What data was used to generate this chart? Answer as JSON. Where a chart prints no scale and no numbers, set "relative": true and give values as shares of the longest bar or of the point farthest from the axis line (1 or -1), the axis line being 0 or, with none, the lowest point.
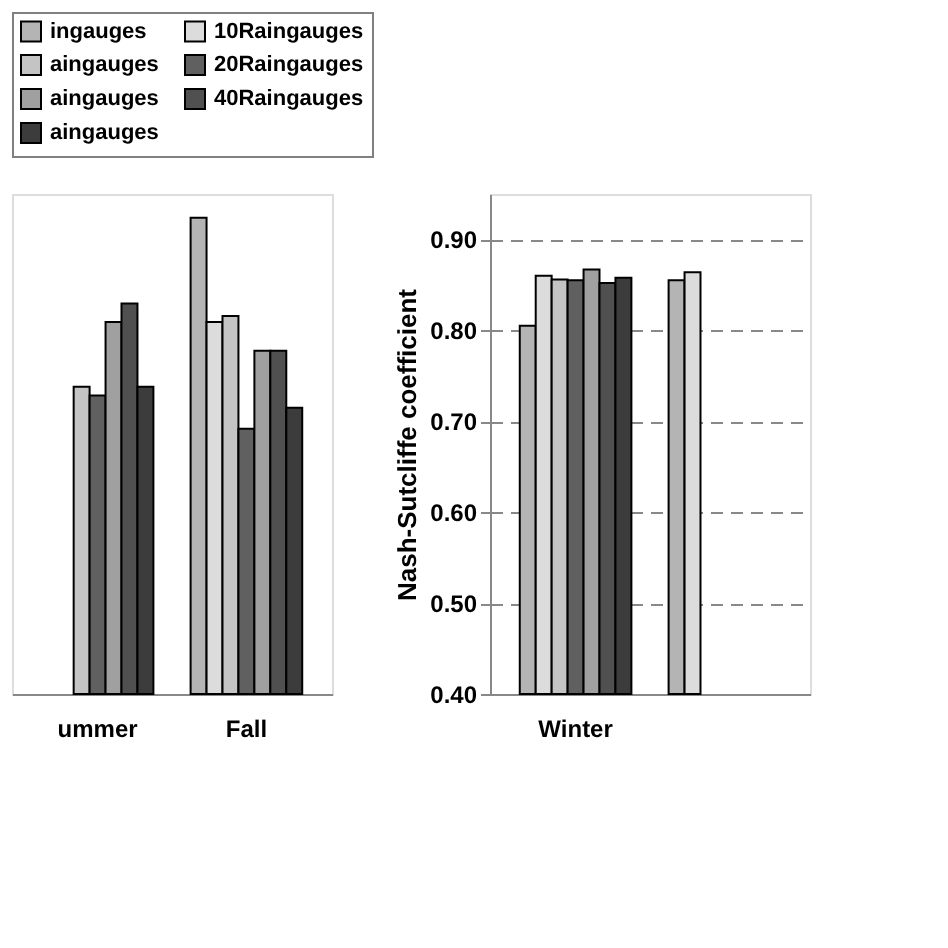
{
  "chart_data": [
    {
      "type": "bar",
      "relative": true,
      "categories": [
        "ummer",
        "Fall"
      ],
      "legend": "top",
      "series": [
        {
          "name": "ingauges",
          "color": "#b4b4b4",
          "values": [
            null,
            1
          ]
        },
        {
          "name": "10Raingauges",
          "color": "#dcdcdc",
          "values": [
            null,
            0.781
          ]
        },
        {
          "name": "aingauges",
          "color": "#c4c4c4",
          "values": [
            0.645,
            0.794
          ]
        },
        {
          "name": "20Raingauges",
          "color": "#606060",
          "values": [
            0.627,
            0.557
          ]
        },
        {
          "name": "aingauges",
          "color": "#a0a0a0",
          "values": [
            0.781,
            0.721
          ]
        },
        {
          "name": "40Raingauges",
          "color": "#505050",
          "values": [
            0.82,
            0.721
          ]
        },
        {
          "name": "aingauges",
          "color": "#3c3c3c",
          "values": [
            0.645,
            0.601
          ]
        }
      ]
    },
    {
      "type": "bar",
      "categories": [
        "Winter",
        null
      ],
      "ylabel": "Nash-Sutcliffe coefficient",
      "ylim": [
        0.4,
        0.95
      ],
      "yticks": [
        {
          "value": 0.4,
          "label": "0.40"
        },
        {
          "value": 0.5,
          "label": "0.50"
        },
        {
          "value": 0.6,
          "label": "0.60"
        },
        {
          "value": 0.7,
          "label": "0.70"
        },
        {
          "value": 0.8,
          "label": "0.80"
        },
        {
          "value": 0.9,
          "label": "0.90"
        }
      ],
      "grid": "y",
      "series": [
        {
          "color": "#b4b4b4",
          "values": [
            0.805,
            0.855
          ]
        },
        {
          "color": "#dcdcdc",
          "values": [
            0.86,
            0.864
          ]
        },
        {
          "color": "#c4c4c4",
          "values": [
            0.856,
            null
          ]
        },
        {
          "color": "#606060",
          "values": [
            0.855,
            null
          ]
        },
        {
          "color": "#a0a0a0",
          "values": [
            0.867,
            null
          ]
        },
        {
          "color": "#505050",
          "values": [
            0.852,
            null
          ]
        },
        {
          "color": "#3c3c3c",
          "values": [
            0.858,
            null
          ]
        }
      ]
    }
  ]
}
